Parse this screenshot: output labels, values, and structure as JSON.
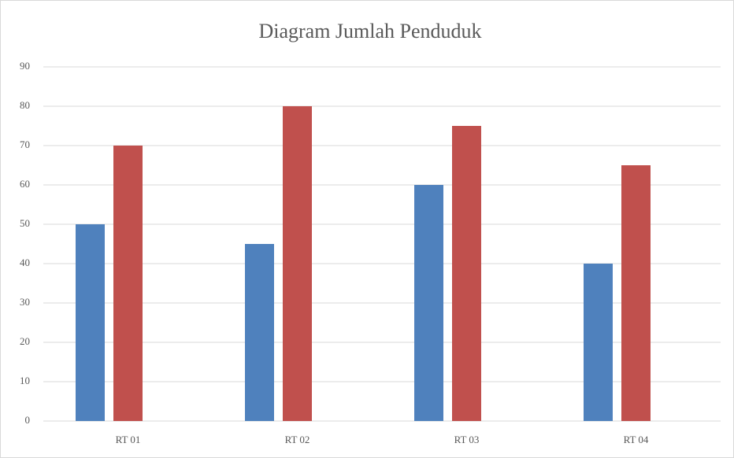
{
  "chart_data": {
    "type": "bar",
    "title": "Diagram Jumlah Penduduk",
    "categories": [
      "RT 01",
      "RT 02",
      "RT 03",
      "RT 04"
    ],
    "series": [
      {
        "color": "#4f81bd",
        "values": [
          50,
          45,
          60,
          40
        ]
      },
      {
        "color": "#c0504d",
        "values": [
          70,
          80,
          75,
          65
        ]
      }
    ],
    "ylim": [
      0,
      90
    ],
    "yticks": [
      0,
      10,
      20,
      30,
      40,
      50,
      60,
      70,
      80,
      90
    ],
    "grid": true
  }
}
